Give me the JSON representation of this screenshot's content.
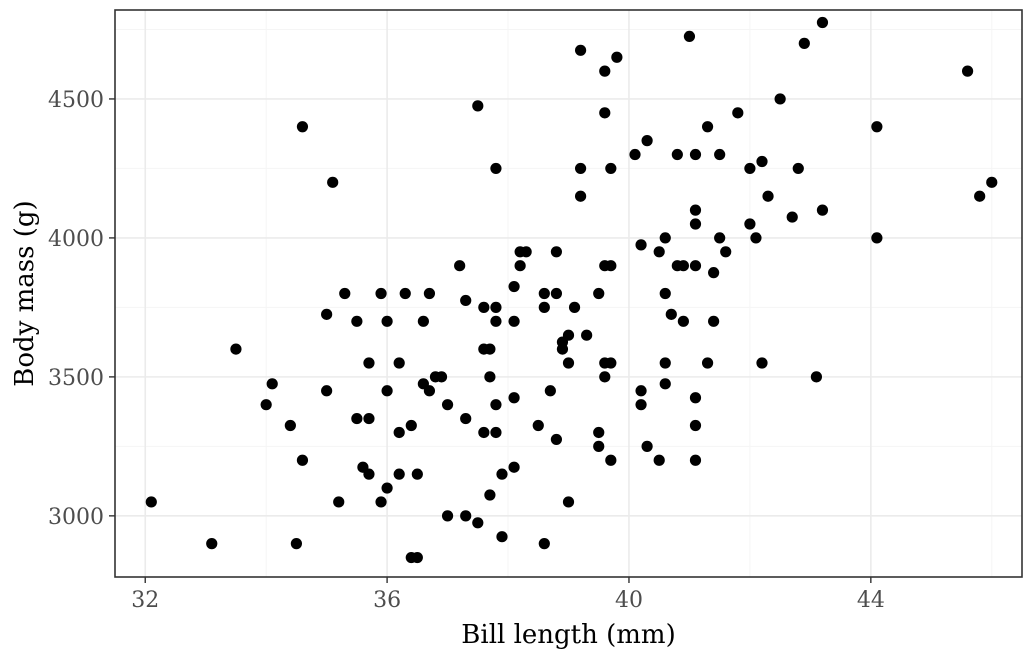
{
  "chart_data": {
    "type": "scatter",
    "title": "",
    "xlabel": "Bill length (mm)",
    "ylabel": "Body mass (g)",
    "xlim": [
      31.5,
      46.5
    ],
    "ylim": [
      2780,
      4820
    ],
    "x_ticks": [
      32,
      36,
      40,
      44
    ],
    "y_ticks": [
      3000,
      3500,
      4000,
      4500
    ],
    "x_tick_labels": [
      "32",
      "36",
      "40",
      "44"
    ],
    "y_tick_labels": [
      "3000",
      "3500",
      "4000",
      "4500"
    ],
    "grid": true,
    "legend": "none",
    "colors": {
      "point": "#000000",
      "grid_major": "#ebebeb",
      "grid_minor": "#f5f5f5",
      "panel_border": "#333333",
      "background": "#ffffff"
    },
    "points": [
      [
        32.1,
        3050
      ],
      [
        33.1,
        2900
      ],
      [
        33.5,
        3600
      ],
      [
        34.0,
        3400
      ],
      [
        34.1,
        3475
      ],
      [
        34.4,
        3325
      ],
      [
        34.5,
        2900
      ],
      [
        34.6,
        3200
      ],
      [
        34.6,
        4400
      ],
      [
        35.0,
        3450
      ],
      [
        35.0,
        3725
      ],
      [
        35.1,
        4200
      ],
      [
        35.2,
        3050
      ],
      [
        35.3,
        3800
      ],
      [
        35.5,
        3700
      ],
      [
        35.5,
        3350
      ],
      [
        35.6,
        3175
      ],
      [
        35.7,
        3150
      ],
      [
        35.7,
        3350
      ],
      [
        35.7,
        3550
      ],
      [
        35.9,
        3800
      ],
      [
        35.9,
        3050
      ],
      [
        36.0,
        3450
      ],
      [
        36.0,
        3700
      ],
      [
        36.0,
        3100
      ],
      [
        36.2,
        3550
      ],
      [
        36.2,
        3300
      ],
      [
        36.2,
        3150
      ],
      [
        36.3,
        3800
      ],
      [
        36.4,
        3325
      ],
      [
        36.4,
        2850
      ],
      [
        36.5,
        2850
      ],
      [
        36.5,
        3150
      ],
      [
        36.6,
        3700
      ],
      [
        36.6,
        3475
      ],
      [
        36.7,
        3800
      ],
      [
        36.7,
        3450
      ],
      [
        36.8,
        3500
      ],
      [
        36.9,
        3500
      ],
      [
        37.0,
        3400
      ],
      [
        37.0,
        3000
      ],
      [
        37.2,
        3900
      ],
      [
        37.3,
        3775
      ],
      [
        37.3,
        3350
      ],
      [
        37.3,
        3000
      ],
      [
        37.5,
        4475
      ],
      [
        37.5,
        2975
      ],
      [
        37.6,
        3750
      ],
      [
        37.6,
        3600
      ],
      [
        37.6,
        3300
      ],
      [
        37.7,
        3600
      ],
      [
        37.7,
        3500
      ],
      [
        37.7,
        3075
      ],
      [
        37.8,
        4250
      ],
      [
        37.8,
        3750
      ],
      [
        37.8,
        3700
      ],
      [
        37.8,
        3400
      ],
      [
        37.8,
        3300
      ],
      [
        37.9,
        3150
      ],
      [
        37.9,
        2925
      ],
      [
        38.1,
        3825
      ],
      [
        38.1,
        3700
      ],
      [
        38.1,
        3425
      ],
      [
        38.1,
        3175
      ],
      [
        38.2,
        3950
      ],
      [
        38.2,
        3900
      ],
      [
        38.3,
        3950
      ],
      [
        38.5,
        3325
      ],
      [
        38.6,
        3800
      ],
      [
        38.6,
        3750
      ],
      [
        38.6,
        2900
      ],
      [
        38.7,
        3450
      ],
      [
        38.8,
        3950
      ],
      [
        38.8,
        3800
      ],
      [
        38.8,
        3275
      ],
      [
        38.9,
        3625
      ],
      [
        38.9,
        3600
      ],
      [
        39.0,
        3650
      ],
      [
        39.0,
        3550
      ],
      [
        39.0,
        3050
      ],
      [
        39.1,
        3750
      ],
      [
        39.2,
        4675
      ],
      [
        39.2,
        4250
      ],
      [
        39.2,
        4150
      ],
      [
        39.3,
        3650
      ],
      [
        39.5,
        3800
      ],
      [
        39.5,
        3300
      ],
      [
        39.5,
        3250
      ],
      [
        39.6,
        4600
      ],
      [
        39.6,
        4450
      ],
      [
        39.6,
        3900
      ],
      [
        39.6,
        3550
      ],
      [
        39.6,
        3500
      ],
      [
        39.7,
        4250
      ],
      [
        39.7,
        3900
      ],
      [
        39.7,
        3550
      ],
      [
        39.7,
        3200
      ],
      [
        39.8,
        4650
      ],
      [
        40.1,
        4300
      ],
      [
        40.2,
        3975
      ],
      [
        40.2,
        3450
      ],
      [
        40.2,
        3400
      ],
      [
        40.3,
        4350
      ],
      [
        40.3,
        3250
      ],
      [
        40.5,
        3950
      ],
      [
        40.5,
        3200
      ],
      [
        40.6,
        4000
      ],
      [
        40.6,
        3800
      ],
      [
        40.6,
        3550
      ],
      [
        40.6,
        3475
      ],
      [
        40.7,
        3725
      ],
      [
        40.8,
        4300
      ],
      [
        40.8,
        3900
      ],
      [
        40.9,
        3900
      ],
      [
        40.9,
        3700
      ],
      [
        41.0,
        4725
      ],
      [
        41.1,
        4300
      ],
      [
        41.1,
        4100
      ],
      [
        41.1,
        4050
      ],
      [
        41.1,
        3900
      ],
      [
        41.1,
        3425
      ],
      [
        41.1,
        3325
      ],
      [
        41.1,
        3200
      ],
      [
        41.3,
        4400
      ],
      [
        41.3,
        3550
      ],
      [
        41.4,
        3875
      ],
      [
        41.4,
        3700
      ],
      [
        41.5,
        4300
      ],
      [
        41.5,
        4000
      ],
      [
        41.6,
        3950
      ],
      [
        41.8,
        4450
      ],
      [
        42.0,
        4250
      ],
      [
        42.0,
        4050
      ],
      [
        42.1,
        4000
      ],
      [
        42.2,
        4275
      ],
      [
        42.2,
        3550
      ],
      [
        42.3,
        4150
      ],
      [
        42.5,
        4500
      ],
      [
        42.7,
        4075
      ],
      [
        42.8,
        4250
      ],
      [
        42.9,
        4700
      ],
      [
        43.1,
        3500
      ],
      [
        43.2,
        4775
      ],
      [
        43.2,
        4100
      ],
      [
        44.1,
        4400
      ],
      [
        44.1,
        4000
      ],
      [
        45.6,
        4600
      ],
      [
        45.8,
        4150
      ],
      [
        46.0,
        4200
      ]
    ]
  }
}
